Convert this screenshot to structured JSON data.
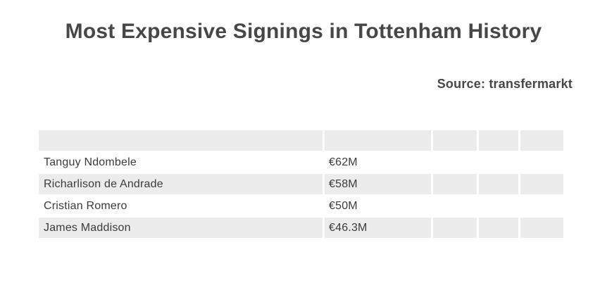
{
  "title": "Most Expensive Signings in Tottenham History",
  "source_label": "Source: transfermarkt",
  "colors": {
    "background": "#ffffff",
    "stripe": "#ececec",
    "title_text": "#474747",
    "row_text": "#3b3b3b"
  },
  "chart_data": {
    "type": "table",
    "title": "Most Expensive Signings in Tottenham History",
    "source": "Source: transfermarkt",
    "unit": "EUR millions",
    "columns": [
      "",
      "",
      "",
      "",
      ""
    ],
    "rows": [
      {
        "player": "Tanguy Ndombele",
        "fee_label": "€62M",
        "fee_millions_eur": 62
      },
      {
        "player": "Richarlison de Andrade",
        "fee_label": "€58M",
        "fee_millions_eur": 58
      },
      {
        "player": "Cristian Romero",
        "fee_label": "€50M",
        "fee_millions_eur": 50
      },
      {
        "player": "James Maddison",
        "fee_label": "€46.3M",
        "fee_millions_eur": 46.3
      }
    ],
    "layout": {
      "header_row_empty": true,
      "striped": true,
      "stripe_pattern": [
        "gray",
        "white",
        "gray",
        "white",
        "gray"
      ],
      "empty_trailing_columns": 3,
      "legend": "none",
      "grid": "off"
    }
  }
}
